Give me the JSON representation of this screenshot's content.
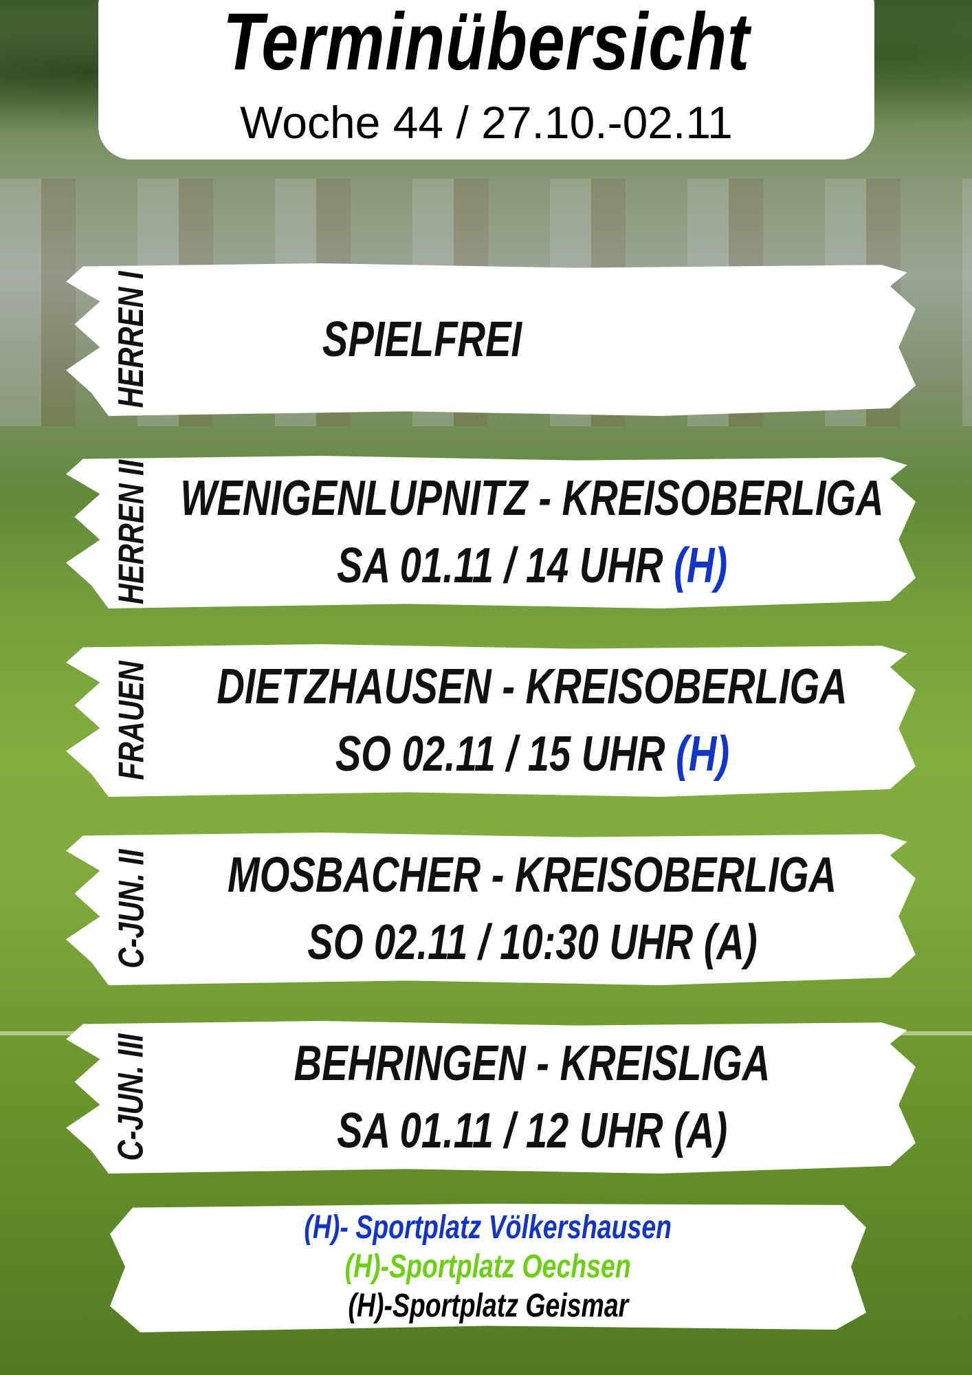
{
  "header": {
    "title": "Terminübersicht",
    "subtitle": "Woche 44 / 27.10.-02.11"
  },
  "rows": [
    {
      "team": "HERREN I",
      "line1": "SPIELFREI",
      "line2": "",
      "venue": ""
    },
    {
      "team": "HERREN II",
      "line1": "WENIGENLUPNITZ - KREISOBERLIGA",
      "line2": "SA 01.11 / 14 UHR",
      "venue": "(H)"
    },
    {
      "team": "FRAUEN",
      "line1": "DIETZHAUSEN - KREISOBERLIGA",
      "line2": "SO 02.11 / 15 UHR",
      "venue": "(H)"
    },
    {
      "team": "C-JUN. II",
      "line1": "MOSBACHER - KREISOBERLIGA",
      "line2": "SO 02.11 / 10:30 UHR",
      "venue": "(A)"
    },
    {
      "team": "C-JUN. III",
      "line1": "BEHRINGEN - KREISLIGA",
      "line2": "SA 01.11 / 12 UHR",
      "venue": "(A)"
    }
  ],
  "legend": [
    {
      "text": "(H)- Sportplatz Völkershausen",
      "color": "#1234c8"
    },
    {
      "text": "(H)-Sportplatz Oechsen",
      "color": "#6ccf14"
    },
    {
      "text": "(H)-Sportplatz Geismar",
      "color": "#000000"
    }
  ]
}
